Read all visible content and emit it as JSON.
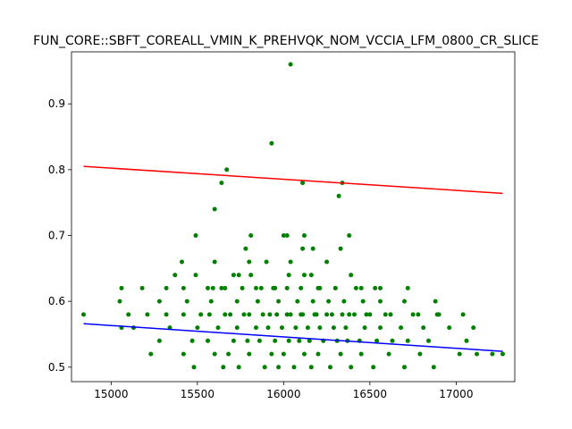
{
  "chart_data": {
    "type": "scatter",
    "title": "FUN_CORE::SBFT_COREALL_VMIN_K_PREHVQK_NOM_VCCIA_LFM_0800_CR_SLICE",
    "xlabel": "",
    "ylabel": "",
    "xlim": [
      14770,
      17340
    ],
    "ylim": [
      0.478,
      0.979
    ],
    "x_ticks": [
      15000,
      15500,
      16000,
      16500,
      17000
    ],
    "x_tick_labels": [
      "15000",
      "15500",
      "16000",
      "16500",
      "17000"
    ],
    "y_ticks": [
      0.5,
      0.6,
      0.7,
      0.8,
      0.9
    ],
    "y_tick_labels": [
      "0.5",
      "0.6",
      "0.7",
      "0.8",
      "0.9"
    ],
    "grid": false,
    "colors": {
      "points": "#008000",
      "upper_line": "#ff0000",
      "lower_line": "#0000ff"
    },
    "series": [
      {
        "kind": "points",
        "x": [
          14840,
          15230,
          15420,
          15480,
          15600,
          15650,
          15680,
          15740,
          15800,
          15890,
          15930,
          15970,
          16000,
          16060,
          16120,
          16160,
          16200,
          16270,
          16330,
          16390,
          16450,
          16520,
          16610,
          16700,
          16790,
          16870,
          17020,
          17120,
          17210,
          17270,
          15060,
          15280,
          15470,
          15560,
          15710,
          15790,
          15860,
          15950,
          16030,
          16090,
          16150,
          16230,
          16310,
          16370,
          16440,
          16540,
          16630,
          16720,
          16840,
          17060,
          15130,
          15340,
          15500,
          15620,
          15730,
          15840,
          15910,
          15990,
          16070,
          16140,
          16210,
          16290,
          16360,
          16470,
          16560,
          16680,
          16810,
          16960,
          17100,
          15210,
          15420,
          15570,
          15690,
          15770,
          15880,
          15960,
          16020,
          16100,
          16180,
          16250,
          16340,
          16410,
          16500,
          16590,
          16750,
          16890,
          17040,
          15100,
          15320,
          15520,
          15660,
          15800,
          15920,
          16040,
          16110,
          16190,
          16280,
          16380,
          16480,
          16620,
          16780,
          16900,
          15050,
          15280,
          15440,
          15580,
          15730,
          15850,
          15970,
          16080,
          16170,
          16260,
          16350,
          16460,
          16560,
          16700,
          16880,
          15060,
          15180,
          15320,
          15420,
          15560,
          15640,
          15760,
          15840,
          15940,
          16020,
          16100,
          16200,
          16300,
          16420,
          16560,
          16720,
          15370,
          15490,
          15590,
          15660,
          15740,
          15810,
          15870,
          15950,
          16030,
          16120,
          16210,
          16300,
          16390,
          16450,
          16530,
          15410,
          15600,
          15710,
          15800,
          15900,
          16040,
          16160,
          16250,
          15490,
          15780,
          15810,
          16000,
          16020,
          16120,
          16330,
          16380,
          16110,
          16170,
          15600,
          15640,
          15670,
          15930,
          16040,
          16110,
          16320,
          16340
        ],
        "y": [
          0.58,
          0.52,
          0.52,
          0.5,
          0.52,
          0.5,
          0.52,
          0.5,
          0.52,
          0.5,
          0.52,
          0.5,
          0.52,
          0.5,
          0.52,
          0.5,
          0.52,
          0.5,
          0.52,
          0.5,
          0.52,
          0.5,
          0.52,
          0.5,
          0.52,
          0.5,
          0.52,
          0.52,
          0.52,
          0.52,
          0.56,
          0.54,
          0.54,
          0.54,
          0.54,
          0.54,
          0.54,
          0.54,
          0.54,
          0.54,
          0.54,
          0.54,
          0.54,
          0.54,
          0.54,
          0.54,
          0.54,
          0.54,
          0.54,
          0.54,
          0.56,
          0.56,
          0.56,
          0.56,
          0.56,
          0.56,
          0.56,
          0.56,
          0.56,
          0.56,
          0.56,
          0.56,
          0.56,
          0.56,
          0.56,
          0.56,
          0.56,
          0.56,
          0.56,
          0.58,
          0.58,
          0.58,
          0.58,
          0.58,
          0.58,
          0.58,
          0.58,
          0.58,
          0.58,
          0.58,
          0.58,
          0.58,
          0.58,
          0.58,
          0.58,
          0.58,
          0.58,
          0.58,
          0.58,
          0.58,
          0.58,
          0.58,
          0.58,
          0.58,
          0.58,
          0.58,
          0.58,
          0.58,
          0.58,
          0.58,
          0.58,
          0.58,
          0.6,
          0.6,
          0.6,
          0.6,
          0.6,
          0.6,
          0.6,
          0.6,
          0.6,
          0.6,
          0.6,
          0.6,
          0.6,
          0.6,
          0.6,
          0.62,
          0.62,
          0.62,
          0.62,
          0.62,
          0.62,
          0.62,
          0.62,
          0.62,
          0.62,
          0.62,
          0.62,
          0.62,
          0.62,
          0.62,
          0.62,
          0.64,
          0.64,
          0.62,
          0.62,
          0.64,
          0.64,
          0.62,
          0.62,
          0.64,
          0.64,
          0.62,
          0.62,
          0.64,
          0.62,
          0.62,
          0.66,
          0.66,
          0.64,
          0.66,
          0.66,
          0.66,
          0.64,
          0.66,
          0.7,
          0.68,
          0.7,
          0.7,
          0.7,
          0.7,
          0.68,
          0.7,
          0.68,
          0.68,
          0.74,
          0.78,
          0.8,
          0.84,
          0.96,
          0.78,
          0.76,
          0.78
        ]
      },
      {
        "kind": "line",
        "name": "",
        "x": [
          14840,
          17270
        ],
        "y": [
          0.805,
          0.764
        ]
      },
      {
        "kind": "line",
        "name": "",
        "x": [
          14840,
          17270
        ],
        "y": [
          0.566,
          0.524
        ]
      }
    ]
  }
}
